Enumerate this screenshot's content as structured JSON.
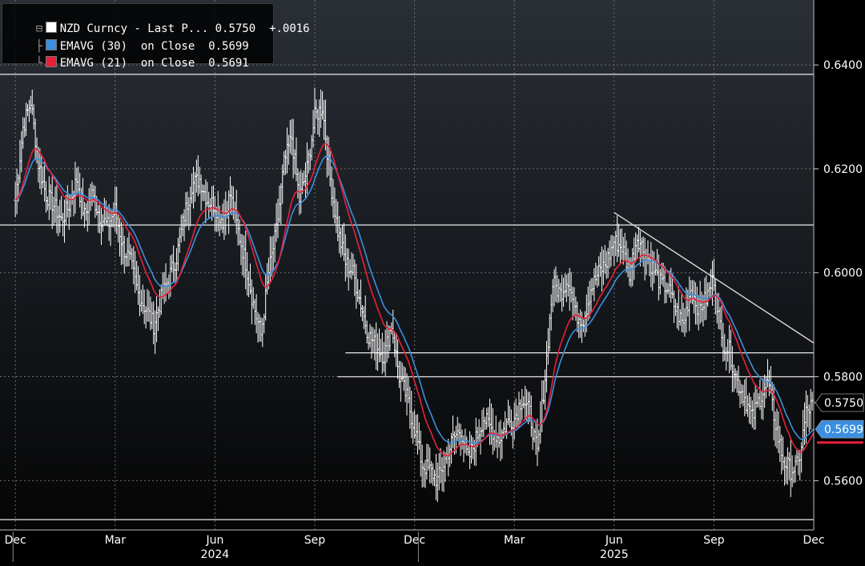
{
  "legend": {
    "items": [
      {
        "label": "NZD Curncy - Last P...",
        "value": "0.5750",
        "change": "+.0016",
        "color": "#ffffff"
      },
      {
        "label": "EMAVG (30)  on Close",
        "value": "0.5699",
        "color": "#3b8fe0"
      },
      {
        "label": "EMAVG (21)  on Close",
        "value": "0.5691",
        "color": "#e8213a"
      }
    ]
  },
  "chart_data": {
    "type": "line",
    "title": "",
    "xlabel": "",
    "ylabel": "",
    "ylim": [
      0.5505,
      0.6525
    ],
    "yticks": [
      {
        "value": 0.64,
        "label": "0.6400"
      },
      {
        "value": 0.62,
        "label": "0.6200"
      },
      {
        "value": 0.6,
        "label": "0.6000"
      },
      {
        "value": 0.58,
        "label": "0.5800"
      },
      {
        "value": 0.56,
        "label": "0.5600"
      }
    ],
    "xticks": [
      {
        "x": 0,
        "label": "Dec"
      },
      {
        "x": 13,
        "label": "Mar"
      },
      {
        "x": 26,
        "label": "Jun"
      },
      {
        "x": 39,
        "label": "Sep"
      },
      {
        "x": 52,
        "label": "Dec"
      },
      {
        "x": 65,
        "label": "Mar"
      },
      {
        "x": 78,
        "label": "Jun"
      },
      {
        "x": 91,
        "label": "Sep"
      },
      {
        "x": 104,
        "label": "Dec"
      }
    ],
    "years": [
      {
        "x": 26,
        "label": "2024"
      },
      {
        "x": 78,
        "label": "2025"
      }
    ],
    "year_separators": [
      -0.3,
      52.5
    ],
    "xlim": [
      -2,
      104
    ],
    "grid": true,
    "legend_position": "top-left",
    "price_weekly": [
      0.614,
      0.628,
      0.633,
      0.621,
      0.615,
      0.613,
      0.61,
      0.613,
      0.618,
      0.611,
      0.615,
      0.611,
      0.609,
      0.612,
      0.605,
      0.602,
      0.596,
      0.593,
      0.59,
      0.595,
      0.599,
      0.603,
      0.611,
      0.617,
      0.618,
      0.614,
      0.613,
      0.61,
      0.615,
      0.608,
      0.602,
      0.594,
      0.588,
      0.6,
      0.608,
      0.621,
      0.626,
      0.614,
      0.62,
      0.63,
      0.632,
      0.618,
      0.608,
      0.602,
      0.6,
      0.594,
      0.588,
      0.586,
      0.584,
      0.59,
      0.58,
      0.576,
      0.57,
      0.563,
      0.562,
      0.56,
      0.564,
      0.568,
      0.57,
      0.564,
      0.568,
      0.572,
      0.57,
      0.568,
      0.571,
      0.572,
      0.576,
      0.573,
      0.565,
      0.58,
      0.598,
      0.596,
      0.599,
      0.592,
      0.591,
      0.597,
      0.6,
      0.602,
      0.606,
      0.605,
      0.6,
      0.607,
      0.604,
      0.601,
      0.598,
      0.597,
      0.593,
      0.59,
      0.597,
      0.593,
      0.595,
      0.599,
      0.587,
      0.585,
      0.579,
      0.576,
      0.572,
      0.576,
      0.579,
      0.571,
      0.564,
      0.562,
      0.563,
      0.573,
      0.575
    ],
    "ema30_last": 0.5699,
    "ema21_last": 0.5691,
    "last_label": "0.5750",
    "ema30_label": "0.5699",
    "horizontal_levels": [
      {
        "value": 0.6382,
        "x_start": -2
      },
      {
        "value": 0.6092,
        "x_start": -2
      },
      {
        "value": 0.5846,
        "x_start": 43
      },
      {
        "value": 0.58,
        "x_start": 42
      },
      {
        "value": 0.5525,
        "x_start": -2
      }
    ],
    "trendline": {
      "x1": 78,
      "y1": 0.6116,
      "x2": 104,
      "y2": 0.5865
    }
  },
  "colors": {
    "price": "#ffffff",
    "ema30": "#3b8fe0",
    "ema21": "#e8213a",
    "grid": "#6e6e6e",
    "levels": "#d8d8d8",
    "axis_text": "#ffffff"
  }
}
